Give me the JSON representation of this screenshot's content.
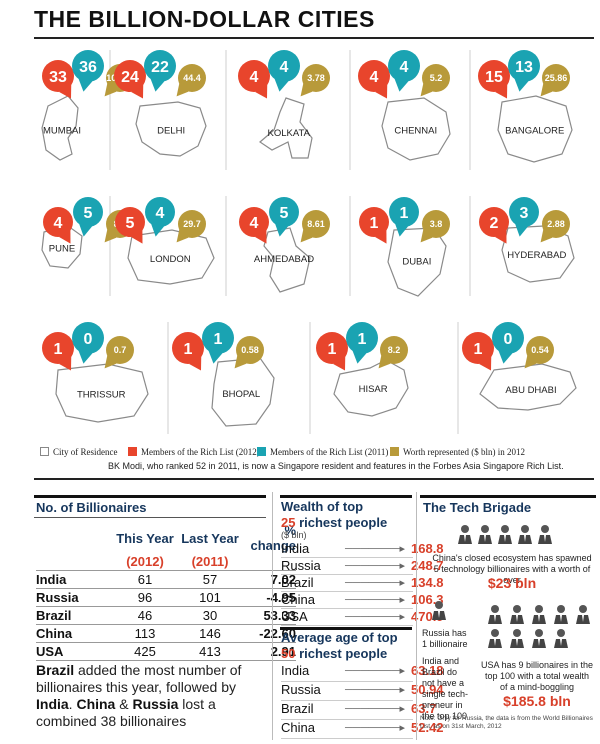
{
  "title": "THE BILLION-DOLLAR CITIES",
  "colors": {
    "red": "#e8452c",
    "teal": "#1aa3b2",
    "gold": "#b89a3a",
    "navy": "#16365c"
  },
  "chart_data": {
    "type": "table",
    "title": "THE BILLION-DOLLAR CITIES",
    "series": [
      {
        "name": "Members of the Rich List (2012)",
        "color": "#e8452c"
      },
      {
        "name": "Members of the Rich List (2011)",
        "color": "#1aa3b2"
      },
      {
        "name": "Worth represented ($ bln) in 2012",
        "color": "#b89a3a"
      }
    ],
    "cities": [
      {
        "name": "MUMBAI",
        "rich_2012": "33",
        "rich_2011": "36",
        "worth": "107.95"
      },
      {
        "name": "DELHI",
        "rich_2012": "24",
        "rich_2011": "22",
        "worth": "44.4"
      },
      {
        "name": "KOLKATA",
        "rich_2012": "4",
        "rich_2011": "4",
        "worth": "3.78"
      },
      {
        "name": "CHENNAI",
        "rich_2012": "4",
        "rich_2011": "4",
        "worth": "5.2"
      },
      {
        "name": "BANGALORE",
        "rich_2012": "15",
        "rich_2011": "13",
        "worth": "25.86"
      },
      {
        "name": "PUNE",
        "rich_2012": "4",
        "rich_2011": "5",
        "worth": "8.4"
      },
      {
        "name": "LONDON",
        "rich_2012": "5",
        "rich_2011": "4",
        "worth": "29.7"
      },
      {
        "name": "AHMEDABAD",
        "rich_2012": "4",
        "rich_2011": "5",
        "worth": "8.61"
      },
      {
        "name": "DUBAI",
        "rich_2012": "1",
        "rich_2011": "1",
        "worth": "3.8"
      },
      {
        "name": "HYDERABAD",
        "rich_2012": "2",
        "rich_2011": "3",
        "worth": "2.88"
      },
      {
        "name": "THRISSUR",
        "rich_2012": "1",
        "rich_2011": "0",
        "worth": "0.7"
      },
      {
        "name": "BHOPAL",
        "rich_2012": "1",
        "rich_2011": "1",
        "worth": "0.58"
      },
      {
        "name": "HISAR",
        "rich_2012": "1",
        "rich_2011": "1",
        "worth": "8.2"
      },
      {
        "name": "ABU DHABI",
        "rich_2012": "1",
        "rich_2011": "0",
        "worth": "0.54"
      }
    ],
    "legend": {
      "city": "City of Residence",
      "rich_2012": "Members of the Rich List (2012)",
      "rich_2011": "Members of the Rich List (2011)",
      "worth": "Worth represented ($ bln) in 2012"
    },
    "note": "BK Modi, who ranked 52 in 2011, is now a Singapore resident and features in the Forbes Asia Singapore Rich List."
  },
  "billionaires": {
    "heading": "No. of Billionaires",
    "col_this": "This Year",
    "col_last": "Last Year",
    "col_change": "% change",
    "year_this": "(2012)",
    "year_last": "(2011)",
    "rows": [
      {
        "country": "India",
        "this": "61",
        "last": "57",
        "change": "7.02"
      },
      {
        "country": "Russia",
        "this": "96",
        "last": "101",
        "change": "-4.95"
      },
      {
        "country": "Brazil",
        "this": "46",
        "last": "30",
        "change": "53.33"
      },
      {
        "country": "China",
        "this": "113",
        "last": "146",
        "change": "-22.60"
      },
      {
        "country": "USA",
        "this": "425",
        "last": "413",
        "change": "2.91"
      }
    ],
    "summary_b1": "Brazil",
    "summary_t1": " added the most number of billionaires this year, followed by ",
    "summary_b2": "India",
    "summary_t2": ". ",
    "summary_b3": "China",
    "summary_t3": " & ",
    "summary_b4": "Russia",
    "summary_t4": " lost a combined 38 billionaires"
  },
  "wealth": {
    "heading_a": "Wealth of top",
    "heading_b": "25",
    "heading_c": " richest people",
    "unit": "($ bln)",
    "rows": [
      {
        "country": "India",
        "value": "168.8"
      },
      {
        "country": "Russia",
        "value": "248.7"
      },
      {
        "country": "Brazil",
        "value": "134.8"
      },
      {
        "country": "China",
        "value": "106.3"
      },
      {
        "country": "USA",
        "value": "470.9"
      }
    ]
  },
  "age": {
    "heading_a": "Average age of top",
    "heading_b": "50",
    "heading_c": " richest people",
    "rows": [
      {
        "country": "India",
        "value": "63.18"
      },
      {
        "country": "Russia",
        "value": "50.94"
      },
      {
        "country": "Brazil",
        "value": "63.7"
      },
      {
        "country": "China",
        "value": "52.42"
      }
    ]
  },
  "tech": {
    "heading": "The Tech Brigade",
    "china_text": "China's closed ecosystem has spawned 5 technology billionaires with a worth of over",
    "china_value": "$23 bln",
    "russia_text": "Russia has 1 billionaire",
    "india_text": "India and Brazil do not have a single tech-preneur in the top 100",
    "usa_text": "USA has 9 billionaires in the top 100 with a total wealth of a mind-boggling",
    "usa_value": "$185.8 bln",
    "footnote": "Note: Only for Russia, the data is from the World Billionaires List, as on 31st March, 2012"
  }
}
